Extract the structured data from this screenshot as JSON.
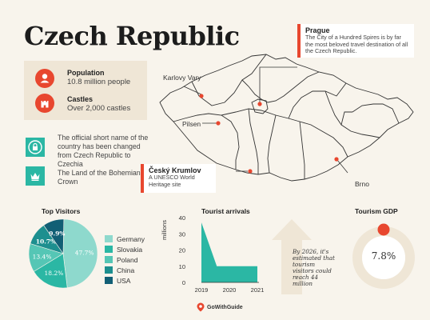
{
  "title": "Czech Republic",
  "population": {
    "label": "Population",
    "value": "10.8 million people"
  },
  "castles": {
    "label": "Castles",
    "value": "Over 2,000 castles"
  },
  "facts": [
    {
      "text": "The official short name of the country has been changed from Czech Republic to Czechia"
    },
    {
      "text": "The Land of the Bohemian Crown"
    }
  ],
  "map": {
    "cities": {
      "karlovy_vary": "Karlovy Vary",
      "pilsen": "Pilsen",
      "brno": "Brno"
    },
    "prague": {
      "title": "Prague",
      "body": "The City of a Hundred Spires is by far the most beloved travel destination of all the Czech Republic."
    },
    "cesky": {
      "title": "Český Krumlov",
      "body": "A UNESCO World Heritage site"
    }
  },
  "colors": {
    "accent": "#e8472f",
    "teal": "#2bb7a4",
    "background": "#f8f4ec"
  },
  "icons": {
    "population": "person-icon",
    "castles": "castle-icon",
    "fact1": "lock-icon",
    "fact2": "crown-icon",
    "gdp": "circle-marker-icon",
    "brand": "gowithguide-logo-icon"
  },
  "top_visitors_title": "Top Visitors",
  "tourist_arrivals_title": "Tourist arrivals",
  "arrivals_ylabel": "millions",
  "arrivals_note": "By 2026, it's estimated that tourism visitors could reach 44 million",
  "gdp_title": "Tourism GDP",
  "gdp_value": "7.8%",
  "footer_brand": "GoWithGuide",
  "chart_data": [
    {
      "type": "pie",
      "title": "Top Visitors",
      "categories": [
        "Germany",
        "Slovakia",
        "Poland",
        "China",
        "USA"
      ],
      "values": [
        47.7,
        18.2,
        13.4,
        10.7,
        9.9
      ],
      "labels": [
        "47.7%",
        "18.2%",
        "13.4%",
        "10.7%",
        "9.9%"
      ],
      "colors": [
        "#8ed9cd",
        "#2bb7a4",
        "#55c6b5",
        "#1d8f8f",
        "#125f75"
      ],
      "legend": "right"
    },
    {
      "type": "area",
      "title": "Tourist arrivals",
      "x": [
        "2019",
        "2020",
        "2021"
      ],
      "values": [
        37,
        10,
        10
      ],
      "ylabel": "millions",
      "ylim": [
        0,
        40
      ],
      "yticks": [
        "40",
        "30",
        "20",
        "10",
        "0"
      ],
      "color": "#2bb7a4"
    }
  ]
}
